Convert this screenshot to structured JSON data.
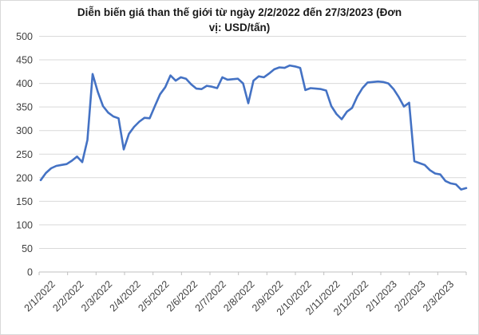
{
  "title": {
    "line1": "Diễn biến giá than thế giới từ ngày 2/2/2022 đến 27/3/2023 (Đơn",
    "line2": "vị: USD/tấn)"
  },
  "chart_data": {
    "type": "line",
    "title": "Diễn biến giá than thế giới từ ngày 2/2/2022 đến 27/3/2023 (Đơn vị: USD/tấn)",
    "ylabel": "",
    "xlabel": "",
    "unit": "USD/tấn",
    "ylim": [
      0,
      500
    ],
    "yticks": [
      0,
      50,
      100,
      150,
      200,
      250,
      300,
      350,
      400,
      450,
      500
    ],
    "grid": "horizontal",
    "legend": "none",
    "line_color": "#4472C4",
    "gridline_color": "#d9d9d9",
    "axis_color": "#bfbfbf",
    "tick_label_color": "#404040",
    "x_tick_labels": [
      "2/1/2022",
      "2/2/2022",
      "2/3/2022",
      "2/4/2022",
      "2/5/2022",
      "2/6/2022",
      "2/7/2022",
      "2/8/2022",
      "2/9/2022",
      "2/10/2022",
      "2/11/2022",
      "2/12/2022",
      "2/1/2023",
      "2/2/2023",
      "2/3/2023"
    ],
    "series": [
      {
        "name": "Giá than thế giới (USD/tấn)",
        "values": [
          195,
          210,
          220,
          225,
          227,
          229,
          236,
          245,
          233,
          280,
          420,
          382,
          352,
          338,
          330,
          326,
          260,
          293,
          308,
          319,
          327,
          326,
          352,
          377,
          392,
          417,
          406,
          413,
          410,
          398,
          389,
          388,
          395,
          393,
          390,
          413,
          408,
          409,
          410,
          400,
          358,
          406,
          415,
          413,
          421,
          430,
          434,
          433,
          438,
          436,
          433,
          386,
          390,
          389,
          388,
          385,
          352,
          335,
          324,
          340,
          348,
          372,
          390,
          402,
          403,
          404,
          403,
          400,
          388,
          371,
          351,
          359,
          235,
          231,
          227,
          216,
          209,
          207,
          193,
          188,
          186,
          175,
          178
        ]
      }
    ]
  }
}
